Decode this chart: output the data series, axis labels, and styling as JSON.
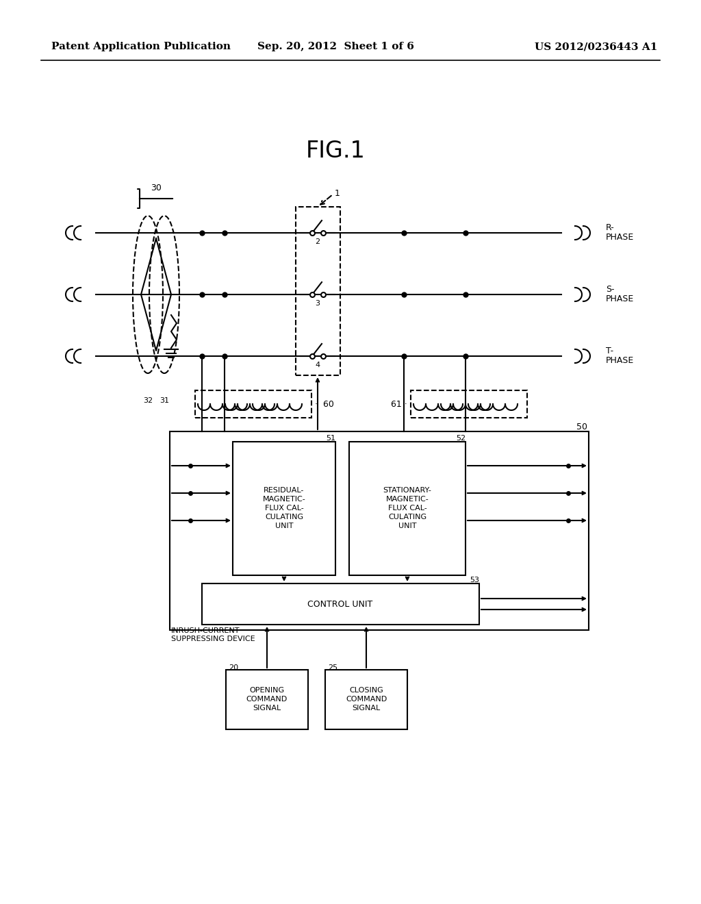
{
  "header_left": "Patent Application Publication",
  "header_center": "Sep. 20, 2012  Sheet 1 of 6",
  "header_right": "US 2012/0236443 A1",
  "fig_title": "FIG.1",
  "bg_color": "#ffffff",
  "line_color": "#000000",
  "header_fontsize": 11,
  "fig_title_fontsize": 24,
  "box_51_text": "RESIDUAL-\nMAGNETIC-\nFLUX CAL-\nCULATING\nUNIT",
  "box_52_text": "STATIONARY-\nMAGNETIC-\nFLUX CAL-\nCULATING\nUNIT",
  "box_53_text": "CONTROL UNIT",
  "inrush_label": "INRUSH-CURRENT\nSUPPRESSING DEVICE",
  "box_20_text": "OPENING\nCOMMAND\nSIGNAL",
  "box_25_text": "CLOSING\nCOMMAND\nSIGNAL"
}
